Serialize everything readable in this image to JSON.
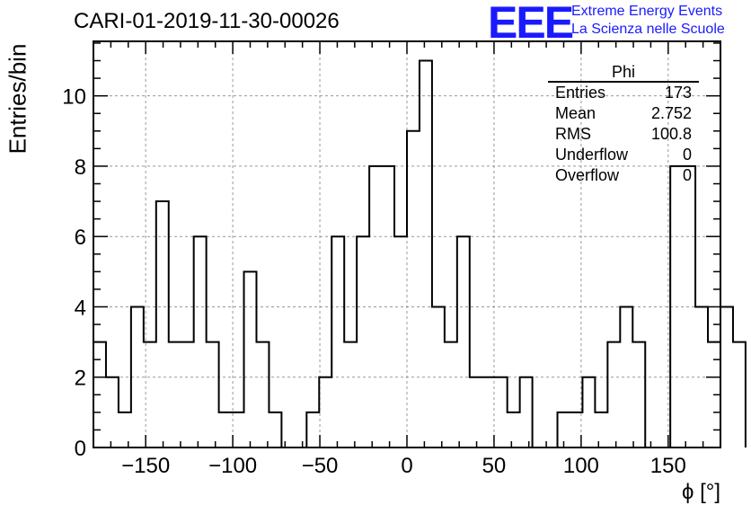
{
  "header": {
    "run_title": "CARI-01-2019-11-30-00026",
    "logo_text": "EEE",
    "logo_line1": "Extreme Energy Events",
    "logo_line2": "La Scienza nelle Scuole",
    "logo_color": "#1a1aff"
  },
  "stats_box": {
    "title": "Phi",
    "rows": [
      {
        "label": "Entries",
        "value": "173"
      },
      {
        "label": "Mean",
        "value": "2.752"
      },
      {
        "label": "RMS",
        "value": "100.8"
      },
      {
        "label": "Underflow",
        "value": "0"
      },
      {
        "label": "Overflow",
        "value": "0"
      }
    ]
  },
  "chart_data": {
    "type": "histogram",
    "xlabel": "ϕ [°]",
    "ylabel": "Entries/bin",
    "xlim": [
      -180,
      180
    ],
    "ylim": [
      0,
      11.55
    ],
    "xticks": [
      -150,
      -100,
      -50,
      0,
      50,
      100,
      150
    ],
    "yticks": [
      0,
      2,
      4,
      6,
      8,
      10
    ],
    "grid": true,
    "bin_width": 7.2,
    "bin_edges_start": -180,
    "values": [
      3,
      2,
      1,
      4,
      3,
      7,
      3,
      3,
      6,
      3,
      1,
      1,
      5,
      3,
      1,
      0,
      0,
      1,
      2,
      6,
      3,
      6,
      8,
      8,
      6,
      9,
      11,
      4,
      3,
      6,
      2,
      2,
      2,
      1,
      2,
      0,
      0,
      1,
      1,
      2,
      1,
      3,
      4,
      3,
      0,
      0,
      8,
      8,
      4,
      3,
      4,
      3
    ],
    "line_color": "#000000",
    "grid_color": "#999999"
  }
}
